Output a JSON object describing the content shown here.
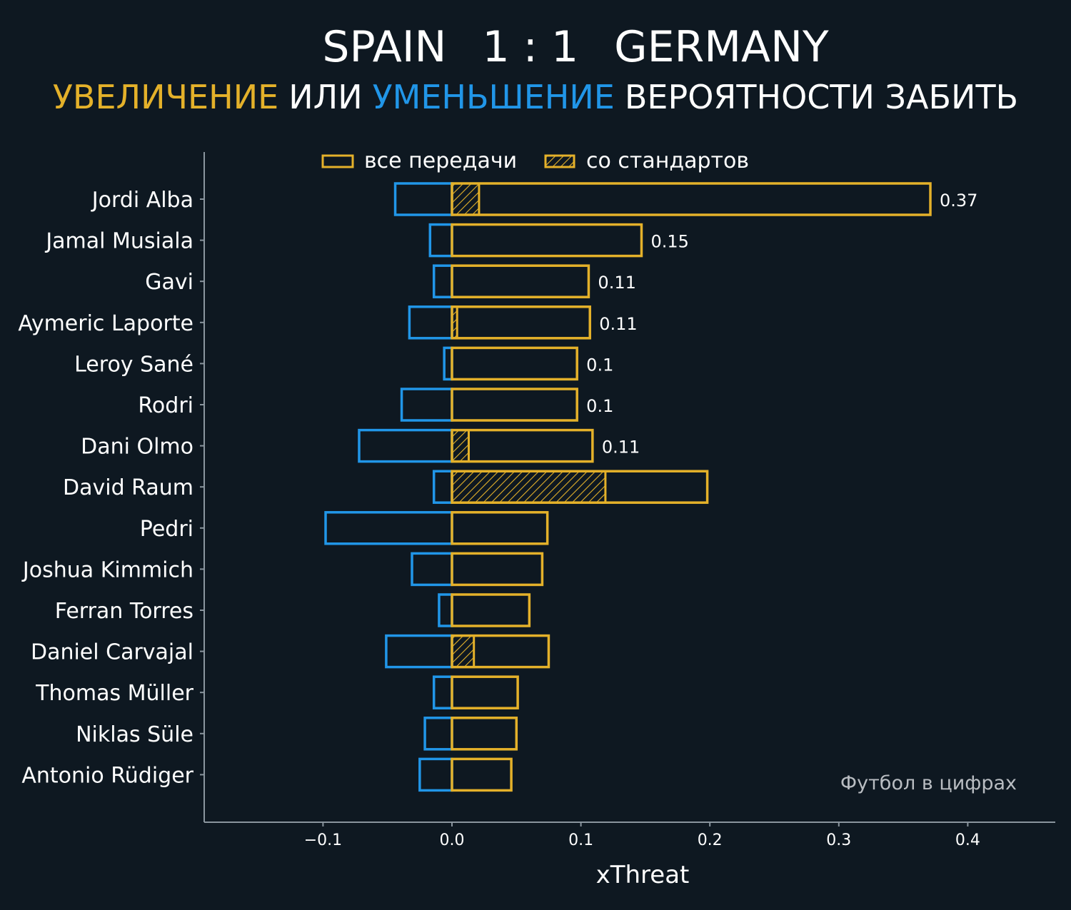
{
  "title": {
    "home_team": "SPAIN",
    "score": "1 : 1",
    "away_team": "GERMANY"
  },
  "subtitle": {
    "increase": "УВЕЛИЧЕНИЕ",
    "or": "ИЛИ",
    "decrease": "УМЕНЬШЕНИЕ",
    "rest": "ВЕРОЯТНОСТИ ЗАБИТЬ"
  },
  "legend": {
    "all_passes": "все передачи",
    "set_pieces": "со стандартов"
  },
  "watermark": "Футбол в цифрах",
  "colors": {
    "background": "#0e1821",
    "increase": "#e4b12a",
    "decrease": "#2196e8",
    "axis": "#8a959e",
    "text": "#ffffff"
  },
  "chart_data": {
    "type": "bar",
    "orientation": "horizontal",
    "xlabel": "xThreat",
    "xlim": [
      -0.19,
      0.47
    ],
    "xticks": [
      -0.1,
      0.0,
      0.1,
      0.2,
      0.3,
      0.4
    ],
    "xtick_labels": [
      "−0.1",
      "0.0",
      "0.1",
      "0.2",
      "0.3",
      "0.4"
    ],
    "categories": [
      "Jordi Alba",
      "Jamal Musiala",
      "Gavi",
      "Aymeric Laporte",
      "Leroy Sané",
      "Rodri",
      "Dani Olmo",
      "David Raum",
      "Pedri",
      "Joshua Kimmich",
      "Ferran Torres",
      "Daniel Carvajal",
      "Thomas Müller",
      "Niklas Süle",
      "Antonio Rüdiger"
    ],
    "series": [
      {
        "name": "increase_all_passes",
        "values": [
          0.371,
          0.147,
          0.106,
          0.107,
          0.097,
          0.097,
          0.109,
          0.198,
          0.074,
          0.07,
          0.06,
          0.075,
          0.051,
          0.05,
          0.046
        ]
      },
      {
        "name": "increase_set_pieces",
        "values": [
          0.021,
          0,
          0,
          0.004,
          0,
          0,
          0.013,
          0.119,
          0,
          0,
          0,
          0.017,
          0,
          0,
          0
        ]
      },
      {
        "name": "decrease_all_passes",
        "values": [
          -0.044,
          -0.017,
          -0.014,
          -0.033,
          -0.006,
          -0.039,
          -0.072,
          -0.014,
          -0.098,
          -0.031,
          -0.01,
          -0.051,
          -0.014,
          -0.021,
          -0.025
        ]
      }
    ],
    "value_labels": [
      "0.37",
      "0.15",
      "0.11",
      "0.11",
      "0.1",
      "0.1",
      "0.11",
      "",
      "",
      "",
      "",
      "",
      "",
      "",
      ""
    ],
    "legend_position": "top"
  }
}
